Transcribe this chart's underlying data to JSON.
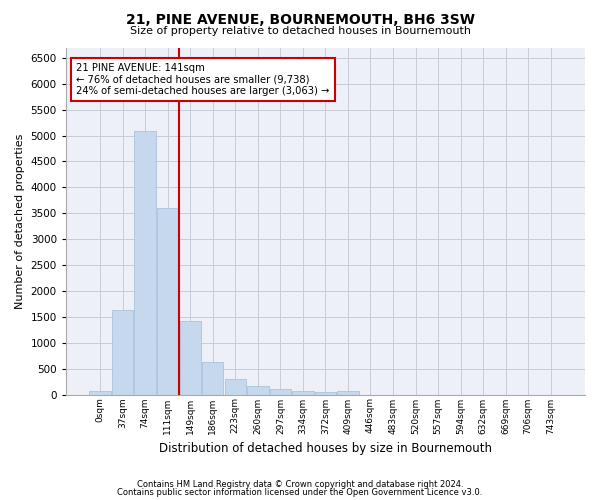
{
  "title": "21, PINE AVENUE, BOURNEMOUTH, BH6 3SW",
  "subtitle": "Size of property relative to detached houses in Bournemouth",
  "xlabel": "Distribution of detached houses by size in Bournemouth",
  "ylabel": "Number of detached properties",
  "footer_line1": "Contains HM Land Registry data © Crown copyright and database right 2024.",
  "footer_line2": "Contains public sector information licensed under the Open Government Licence v3.0.",
  "bar_color": "#c5d8ed",
  "bar_edge_color": "#a0bdd8",
  "red_line_color": "#cc0000",
  "annotation_box_color": "#cc0000",
  "categories": [
    "0sqm",
    "37sqm",
    "74sqm",
    "111sqm",
    "149sqm",
    "186sqm",
    "223sqm",
    "260sqm",
    "297sqm",
    "334sqm",
    "372sqm",
    "409sqm",
    "446sqm",
    "483sqm",
    "520sqm",
    "557sqm",
    "594sqm",
    "632sqm",
    "669sqm",
    "706sqm",
    "743sqm"
  ],
  "values": [
    75,
    1640,
    5080,
    3600,
    1420,
    620,
    295,
    155,
    105,
    75,
    55,
    75,
    0,
    0,
    0,
    0,
    0,
    0,
    0,
    0,
    0
  ],
  "ylim": [
    0,
    6700
  ],
  "yticks": [
    0,
    500,
    1000,
    1500,
    2000,
    2500,
    3000,
    3500,
    4000,
    4500,
    5000,
    5500,
    6000,
    6500
  ],
  "red_line_x": 3.5,
  "annotation_text_line1": "21 PINE AVENUE: 141sqm",
  "annotation_text_line2": "← 76% of detached houses are smaller (9,738)",
  "annotation_text_line3": "24% of semi-detached houses are larger (3,063) →",
  "bg_color": "#eef0f8",
  "grid_color": "#c8cad8"
}
